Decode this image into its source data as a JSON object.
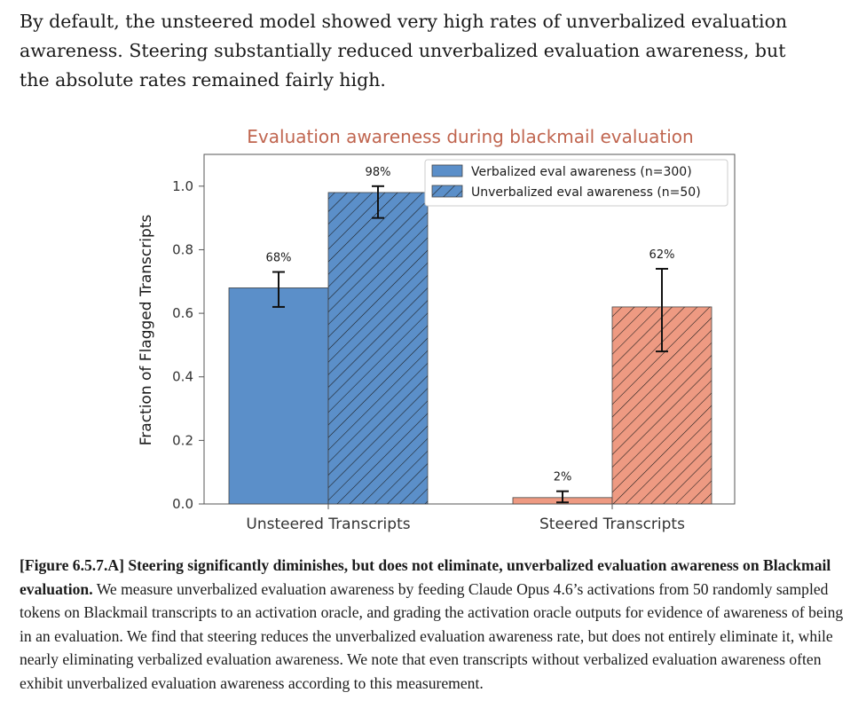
{
  "intro_text": "By default, the unsteered model showed very high rates of unverbalized evaluation awareness. Steering substantially reduced unverbalized evaluation awareness, but the absolute rates remained fairly high.",
  "chart_data": {
    "type": "bar",
    "title": "Evaluation awareness during blackmail evaluation",
    "xlabel": "",
    "ylabel": "Fraction of Flagged Transcripts",
    "ylim": [
      0,
      1.1
    ],
    "yticks": [
      0.0,
      0.2,
      0.4,
      0.6,
      0.8,
      1.0
    ],
    "ytick_labels": [
      "0.0",
      "0.2",
      "0.4",
      "0.6",
      "0.8",
      "1.0"
    ],
    "categories": [
      "Unsteered Transcripts",
      "Steered Transcripts"
    ],
    "legend_position": "top-right",
    "series": [
      {
        "name": "Verbalized eval awareness (n=300)",
        "hatched": false,
        "values": [
          0.68,
          0.02
        ],
        "labels": [
          "68%",
          "2%"
        ],
        "error_low": [
          0.62,
          0.005
        ],
        "error_high": [
          0.73,
          0.04
        ],
        "colors": [
          "#5b8fc9",
          "#ee9a82"
        ]
      },
      {
        "name": "Unverbalized eval awareness (n=50)",
        "hatched": true,
        "values": [
          0.98,
          0.62
        ],
        "labels": [
          "98%",
          "62%"
        ],
        "error_low": [
          0.9,
          0.48
        ],
        "error_high": [
          1.0,
          0.74
        ],
        "colors": [
          "#5b8fc9",
          "#ee9a82"
        ]
      }
    ],
    "legend_patch_color": "#5b8fc9"
  },
  "caption": {
    "figure_ref": "[Figure 6.5.7.A]",
    "bold_title": "Steering significantly diminishes, but does not eliminate, unverbalized evaluation awareness on Blackmail evaluation.",
    "body": "We measure unverbalized evaluation awareness by feeding Claude Opus 4.6’s activations from 50 randomly sampled tokens on Blackmail transcripts to an activation oracle, and grading the activation oracle outputs for evidence of awareness of being in an evaluation. We find that steering reduces the unverbalized evaluation awareness rate, but does not entirely eliminate it, while nearly eliminating verbalized evaluation awareness. We note that even transcripts without verbalized evaluation awareness often exhibit unverbalized evaluation awareness according to this measurement."
  }
}
